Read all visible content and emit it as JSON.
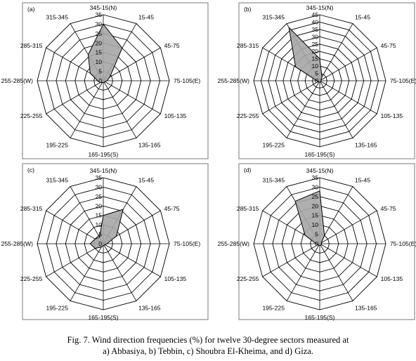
{
  "chart_data": [
    {
      "type": "radar",
      "panel_label": "(a)",
      "categories": [
        "345-15(N)",
        "15-45",
        "45-75",
        "75-105(E)",
        "105-135",
        "135-165",
        "165-195(S)",
        "195-225",
        "225-255",
        "255-285(W)",
        "285-315",
        "315-345"
      ],
      "series": [
        {
          "values": [
            30,
            20,
            4,
            2,
            1,
            1,
            1,
            1,
            2,
            3,
            8,
            16
          ]
        }
      ],
      "rlim": [
        0,
        35
      ],
      "rticks": [
        0,
        5,
        10,
        15,
        20,
        25,
        30,
        35
      ],
      "grid": true
    },
    {
      "type": "radar",
      "panel_label": "(b)",
      "categories": [
        "345-15(N)",
        "15-45",
        "45-75",
        "75-105(E)",
        "105-135",
        "135-165",
        "165-195(S)",
        "195-225",
        "225-255",
        "255-285(W)",
        "285-315",
        "315-345"
      ],
      "series": [
        {
          "values": [
            15,
            3,
            1,
            1,
            1,
            1,
            1,
            1,
            1,
            2,
            19,
            42
          ]
        }
      ],
      "rlim": [
        0,
        45
      ],
      "rticks": [
        0,
        5,
        10,
        15,
        20,
        25,
        30,
        35,
        40,
        45
      ],
      "grid": true
    },
    {
      "type": "radar",
      "panel_label": "(c)",
      "categories": [
        "345-15(N)",
        "15-45",
        "45-75",
        "75-105(E)",
        "105-135",
        "135-165",
        "165-195(S)",
        "195-225",
        "225-255",
        "255-285(W)",
        "285-315",
        "315-345"
      ],
      "series": [
        {
          "values": [
            15,
            21,
            8,
            2,
            1,
            1,
            1,
            2,
            5,
            7,
            5,
            4
          ]
        }
      ],
      "rlim": [
        0,
        35
      ],
      "rticks": [
        0,
        5,
        10,
        15,
        20,
        25,
        30,
        35
      ],
      "grid": true
    },
    {
      "type": "radar",
      "panel_label": "(d)",
      "categories": [
        "345-15(N)",
        "15-45",
        "45-75",
        "75-105(E)",
        "105-135",
        "135-165",
        "165-195(S)",
        "195-225",
        "225-255",
        "255-285(W)",
        "285-315",
        "315-345"
      ],
      "series": [
        {
          "values": [
            28,
            5,
            1,
            1,
            1,
            1,
            1,
            1,
            1,
            2,
            9,
            26
          ]
        }
      ],
      "rlim": [
        0,
        35
      ],
      "rticks": [
        0,
        5,
        10,
        15,
        20,
        25,
        30,
        35
      ],
      "grid": true
    }
  ],
  "caption": {
    "line1": "Fig. 7. Wind direction frequencies (%) for twelve 30-degree sectors measured at",
    "line2": "a) Abbasiya, b) Tebbin, c) Shoubra El-Kheima, and d) Giza."
  },
  "colors": {
    "series_fill": "#a6a6a6",
    "grid": "#000000",
    "frame": "#7a7a7a"
  }
}
